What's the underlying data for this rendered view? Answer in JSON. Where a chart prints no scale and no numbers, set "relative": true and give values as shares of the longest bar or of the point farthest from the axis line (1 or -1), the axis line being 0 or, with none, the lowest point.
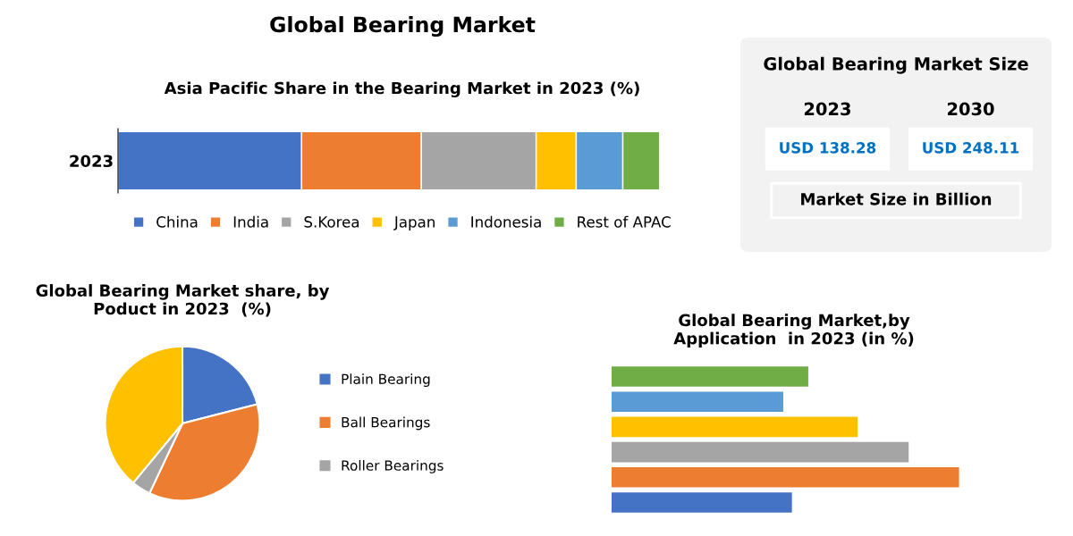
{
  "chart_data": [
    {
      "type": "bar",
      "title": "Global Bearing Market",
      "subtitle": "Asia Pacific Share in the Bearing Market in 2023 (%)",
      "orientation": "horizontal",
      "stacked": true,
      "relative": true,
      "legend": "bottom",
      "categories": [
        "2023"
      ],
      "series": [
        {
          "name": "China",
          "color": "#4472c4",
          "values": [
            0.339
          ]
        },
        {
          "name": "India",
          "color": "#ed7d31",
          "values": [
            0.221
          ]
        },
        {
          "name": "S.Korea",
          "color": "#a5a5a5",
          "values": [
            0.212
          ]
        },
        {
          "name": "Japan",
          "color": "#ffc000",
          "values": [
            0.074
          ]
        },
        {
          "name": "Indonesia",
          "color": "#5b9bd5",
          "values": [
            0.086
          ]
        },
        {
          "name": "Rest of APAC",
          "color": "#70ad47",
          "values": [
            0.068
          ]
        }
      ]
    },
    {
      "type": "other",
      "title": "Global Bearing Market Size",
      "annotations": [
        "2023",
        "2030",
        "USD 138.28",
        "USD 248.11",
        "Market Size in Billion"
      ]
    },
    {
      "type": "pie",
      "title": "Global Bearing Market share, by\nPoduct in 2023  (%)",
      "legend": "right",
      "categories": [
        "Plain Bearing",
        "Ball Bearings",
        "Roller Bearings",
        null
      ],
      "values": [
        21,
        36,
        4,
        39
      ],
      "colors": [
        "#4472c4",
        "#ed7d31",
        "#a5a5a5",
        "#ffc000"
      ]
    },
    {
      "type": "bar",
      "title": "Global Bearing Market,by\nApplication  in 2023 (in %)",
      "orientation": "horizontal",
      "relative": true,
      "categories": [
        null,
        null,
        null,
        null,
        null,
        null
      ],
      "values": [
        0.566,
        0.494,
        0.708,
        0.855,
        1,
        0.519
      ],
      "colors": [
        "#70ad47",
        "#5b9bd5",
        "#ffc000",
        "#a5a5a5",
        "#ed7d31",
        "#4472c4"
      ]
    }
  ]
}
